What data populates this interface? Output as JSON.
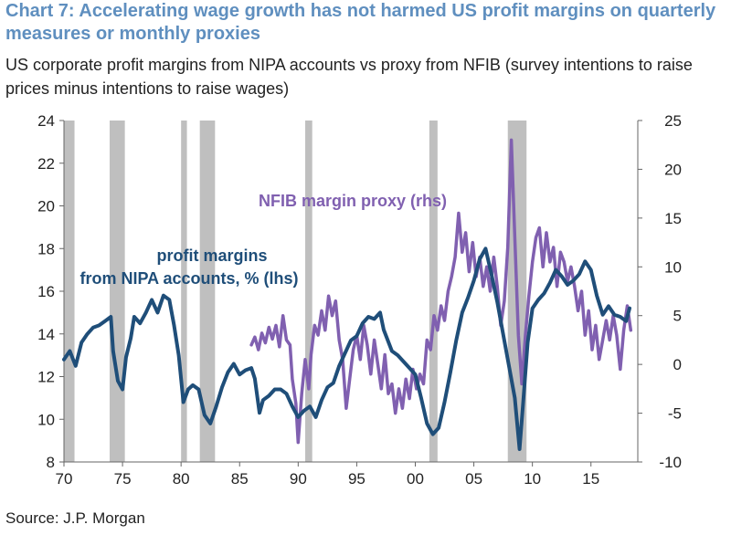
{
  "title": "Chart 7: Accelerating wage growth has not harmed US profit margins on quarterly measures or monthly proxies",
  "subtitle": "US corporate profit margins from NIPA accounts vs proxy from NFIB (survey intentions to raise prices minus intentions to raise wages)",
  "source": "Source: J.P. Morgan",
  "colors": {
    "title": "#5f8fbf",
    "nipa": "#1f4e79",
    "nfib": "#8060b0",
    "recession": "#bfbfbf"
  },
  "chart_data": {
    "type": "line",
    "title": "Chart 7: Accelerating wage growth has not harmed US profit margins on quarterly measures or monthly proxies",
    "xlim": [
      1970,
      2019
    ],
    "x_ticks": [
      "70",
      "75",
      "80",
      "85",
      "90",
      "95",
      "00",
      "05",
      "10",
      "15"
    ],
    "x_tick_values": [
      1970,
      1975,
      1980,
      1985,
      1990,
      1995,
      2000,
      2005,
      2010,
      2015
    ],
    "ylim_left": [
      8,
      24
    ],
    "y_ticks_left": [
      "8",
      "10",
      "12",
      "14",
      "16",
      "18",
      "20",
      "22",
      "24"
    ],
    "ylim_right": [
      -10,
      25
    ],
    "y_ticks_right": [
      "-10",
      "-5",
      "0",
      "5",
      "10",
      "15",
      "20",
      "25"
    ],
    "grid": false,
    "recessions": [
      [
        1970.0,
        1970.9
      ],
      [
        1973.9,
        1975.2
      ],
      [
        1980.0,
        1980.5
      ],
      [
        1981.6,
        1982.9
      ],
      [
        1990.6,
        1991.2
      ],
      [
        2001.2,
        2001.9
      ],
      [
        2007.9,
        2009.5
      ]
    ],
    "annotations": [
      {
        "lines": [
          "profit margins",
          "from NIPA accounts, % (lhs)"
        ],
        "series": "nipa"
      },
      {
        "lines": [
          "NFIB margin proxy (rhs)"
        ],
        "series": "nfib"
      }
    ],
    "series": [
      {
        "key": "nipa",
        "axis": "left",
        "color": "#1f4e79",
        "points": [
          [
            1970.0,
            12.8
          ],
          [
            1970.5,
            13.2
          ],
          [
            1971.0,
            12.5
          ],
          [
            1971.5,
            13.6
          ],
          [
            1972.0,
            14.0
          ],
          [
            1972.5,
            14.3
          ],
          [
            1973.0,
            14.4
          ],
          [
            1973.5,
            14.6
          ],
          [
            1974.0,
            14.8
          ],
          [
            1974.2,
            13.2
          ],
          [
            1974.6,
            11.8
          ],
          [
            1975.0,
            11.4
          ],
          [
            1975.3,
            12.9
          ],
          [
            1975.7,
            13.8
          ],
          [
            1976.0,
            14.8
          ],
          [
            1976.5,
            14.5
          ],
          [
            1977.0,
            15.0
          ],
          [
            1977.5,
            15.6
          ],
          [
            1978.0,
            15.0
          ],
          [
            1978.5,
            15.8
          ],
          [
            1979.0,
            15.6
          ],
          [
            1979.4,
            14.4
          ],
          [
            1979.8,
            13.0
          ],
          [
            1980.2,
            10.8
          ],
          [
            1980.6,
            11.4
          ],
          [
            1981.0,
            11.6
          ],
          [
            1981.5,
            11.4
          ],
          [
            1982.0,
            10.2
          ],
          [
            1982.5,
            9.8
          ],
          [
            1983.0,
            10.6
          ],
          [
            1983.5,
            11.5
          ],
          [
            1984.0,
            12.2
          ],
          [
            1984.5,
            12.6
          ],
          [
            1985.0,
            12.1
          ],
          [
            1985.5,
            12.3
          ],
          [
            1986.0,
            12.4
          ],
          [
            1986.3,
            11.9
          ],
          [
            1986.7,
            10.3
          ],
          [
            1987.0,
            10.9
          ],
          [
            1987.5,
            11.1
          ],
          [
            1988.0,
            11.4
          ],
          [
            1988.5,
            11.4
          ],
          [
            1989.0,
            11.2
          ],
          [
            1989.5,
            10.6
          ],
          [
            1990.0,
            10.1
          ],
          [
            1990.5,
            10.4
          ],
          [
            1991.0,
            10.6
          ],
          [
            1991.5,
            10.1
          ],
          [
            1992.0,
            10.9
          ],
          [
            1992.5,
            11.5
          ],
          [
            1993.0,
            11.7
          ],
          [
            1993.5,
            12.5
          ],
          [
            1994.0,
            13.1
          ],
          [
            1994.5,
            13.7
          ],
          [
            1995.0,
            13.9
          ],
          [
            1995.5,
            14.5
          ],
          [
            1996.0,
            14.8
          ],
          [
            1996.5,
            14.7
          ],
          [
            1997.0,
            15.0
          ],
          [
            1997.3,
            14.2
          ],
          [
            1998.0,
            13.2
          ],
          [
            1998.5,
            13.0
          ],
          [
            1999.0,
            12.7
          ],
          [
            1999.5,
            12.4
          ],
          [
            2000.0,
            12.1
          ],
          [
            2000.5,
            11.0
          ],
          [
            2001.0,
            9.8
          ],
          [
            2001.5,
            9.3
          ],
          [
            2002.0,
            9.6
          ],
          [
            2002.5,
            10.8
          ],
          [
            2003.0,
            12.2
          ],
          [
            2003.5,
            13.7
          ],
          [
            2004.0,
            15.0
          ],
          [
            2004.5,
            15.7
          ],
          [
            2005.0,
            16.5
          ],
          [
            2005.5,
            17.5
          ],
          [
            2006.0,
            18.0
          ],
          [
            2006.5,
            16.8
          ],
          [
            2007.0,
            15.5
          ],
          [
            2007.5,
            14.0
          ],
          [
            2008.0,
            12.5
          ],
          [
            2008.5,
            11.0
          ],
          [
            2008.9,
            8.6
          ],
          [
            2009.2,
            10.7
          ],
          [
            2009.6,
            13.6
          ],
          [
            2010.0,
            15.2
          ],
          [
            2010.5,
            15.6
          ],
          [
            2011.0,
            15.9
          ],
          [
            2011.5,
            16.4
          ],
          [
            2012.0,
            17.0
          ],
          [
            2012.5,
            16.7
          ],
          [
            2013.0,
            16.3
          ],
          [
            2013.5,
            16.5
          ],
          [
            2014.0,
            16.8
          ],
          [
            2014.5,
            17.4
          ],
          [
            2015.0,
            17.0
          ],
          [
            2015.5,
            15.8
          ],
          [
            2016.0,
            14.9
          ],
          [
            2016.5,
            15.3
          ],
          [
            2017.0,
            14.9
          ],
          [
            2017.5,
            14.8
          ],
          [
            2018.0,
            14.6
          ],
          [
            2018.3,
            15.2
          ]
        ]
      },
      {
        "key": "nfib",
        "axis": "right",
        "color": "#8060b0",
        "points": [
          [
            1986.0,
            2.0
          ],
          [
            1986.3,
            2.8
          ],
          [
            1986.6,
            1.5
          ],
          [
            1986.9,
            3.2
          ],
          [
            1987.2,
            2.2
          ],
          [
            1987.5,
            3.8
          ],
          [
            1987.8,
            2.6
          ],
          [
            1988.1,
            4.0
          ],
          [
            1988.4,
            1.8
          ],
          [
            1988.7,
            5.0
          ],
          [
            1989.0,
            2.5
          ],
          [
            1989.3,
            2.0
          ],
          [
            1989.5,
            -1.5
          ],
          [
            1989.8,
            -4.0
          ],
          [
            1990.0,
            -8.0
          ],
          [
            1990.3,
            -3.0
          ],
          [
            1990.6,
            0.5
          ],
          [
            1990.9,
            -2.5
          ],
          [
            1991.1,
            1.0
          ],
          [
            1991.4,
            4.0
          ],
          [
            1991.7,
            3.0
          ],
          [
            1992.0,
            5.5
          ],
          [
            1992.3,
            3.5
          ],
          [
            1992.6,
            7.0
          ],
          [
            1992.9,
            5.0
          ],
          [
            1993.2,
            6.5
          ],
          [
            1993.5,
            2.5
          ],
          [
            1993.8,
            0.5
          ],
          [
            1994.1,
            -4.5
          ],
          [
            1994.4,
            -1.5
          ],
          [
            1994.7,
            1.5
          ],
          [
            1995.0,
            3.0
          ],
          [
            1995.3,
            0.5
          ],
          [
            1995.6,
            4.0
          ],
          [
            1995.9,
            2.0
          ],
          [
            1996.2,
            -1.0
          ],
          [
            1996.5,
            2.5
          ],
          [
            1996.8,
            0.0
          ],
          [
            1997.1,
            -2.5
          ],
          [
            1997.4,
            1.0
          ],
          [
            1997.7,
            -3.0
          ],
          [
            1998.0,
            -2.0
          ],
          [
            1998.3,
            -5.0
          ],
          [
            1998.6,
            -2.5
          ],
          [
            1998.9,
            -4.5
          ],
          [
            1999.2,
            -1.5
          ],
          [
            1999.5,
            -3.5
          ],
          [
            1999.8,
            -0.5
          ],
          [
            2000.1,
            -2.5
          ],
          [
            2000.4,
            -1.0
          ],
          [
            2000.7,
            -2.0
          ],
          [
            2001.0,
            2.5
          ],
          [
            2001.3,
            1.5
          ],
          [
            2001.6,
            5.0
          ],
          [
            2001.9,
            3.5
          ],
          [
            2002.2,
            6.0
          ],
          [
            2002.5,
            4.5
          ],
          [
            2002.8,
            7.5
          ],
          [
            2003.1,
            9.0
          ],
          [
            2003.4,
            11.0
          ],
          [
            2003.7,
            15.5
          ],
          [
            2004.0,
            11.5
          ],
          [
            2004.3,
            13.5
          ],
          [
            2004.6,
            9.5
          ],
          [
            2004.9,
            12.5
          ],
          [
            2005.2,
            9.0
          ],
          [
            2005.5,
            11.0
          ],
          [
            2005.8,
            8.0
          ],
          [
            2006.1,
            10.0
          ],
          [
            2006.4,
            7.5
          ],
          [
            2006.7,
            11.0
          ],
          [
            2007.0,
            8.0
          ],
          [
            2007.3,
            4.0
          ],
          [
            2007.6,
            6.5
          ],
          [
            2007.9,
            12.0
          ],
          [
            2008.2,
            23.0
          ],
          [
            2008.5,
            13.0
          ],
          [
            2008.8,
            3.0
          ],
          [
            2009.1,
            -2.0
          ],
          [
            2009.4,
            3.0
          ],
          [
            2009.7,
            7.0
          ],
          [
            2010.0,
            10.5
          ],
          [
            2010.3,
            13.0
          ],
          [
            2010.6,
            14.0
          ],
          [
            2010.9,
            10.0
          ],
          [
            2011.2,
            13.5
          ],
          [
            2011.5,
            10.5
          ],
          [
            2011.8,
            12.0
          ],
          [
            2012.1,
            8.0
          ],
          [
            2012.4,
            11.5
          ],
          [
            2012.7,
            10.5
          ],
          [
            2013.0,
            8.5
          ],
          [
            2013.3,
            10.0
          ],
          [
            2013.6,
            8.0
          ],
          [
            2013.9,
            5.5
          ],
          [
            2014.2,
            7.5
          ],
          [
            2014.5,
            3.0
          ],
          [
            2014.8,
            5.5
          ],
          [
            2015.1,
            1.5
          ],
          [
            2015.4,
            4.0
          ],
          [
            2015.7,
            0.5
          ],
          [
            2016.0,
            2.5
          ],
          [
            2016.3,
            4.5
          ],
          [
            2016.6,
            2.5
          ],
          [
            2016.9,
            5.0
          ],
          [
            2017.2,
            3.0
          ],
          [
            2017.5,
            -0.5
          ],
          [
            2017.8,
            3.5
          ],
          [
            2018.1,
            6.0
          ],
          [
            2018.4,
            3.5
          ]
        ]
      }
    ]
  }
}
